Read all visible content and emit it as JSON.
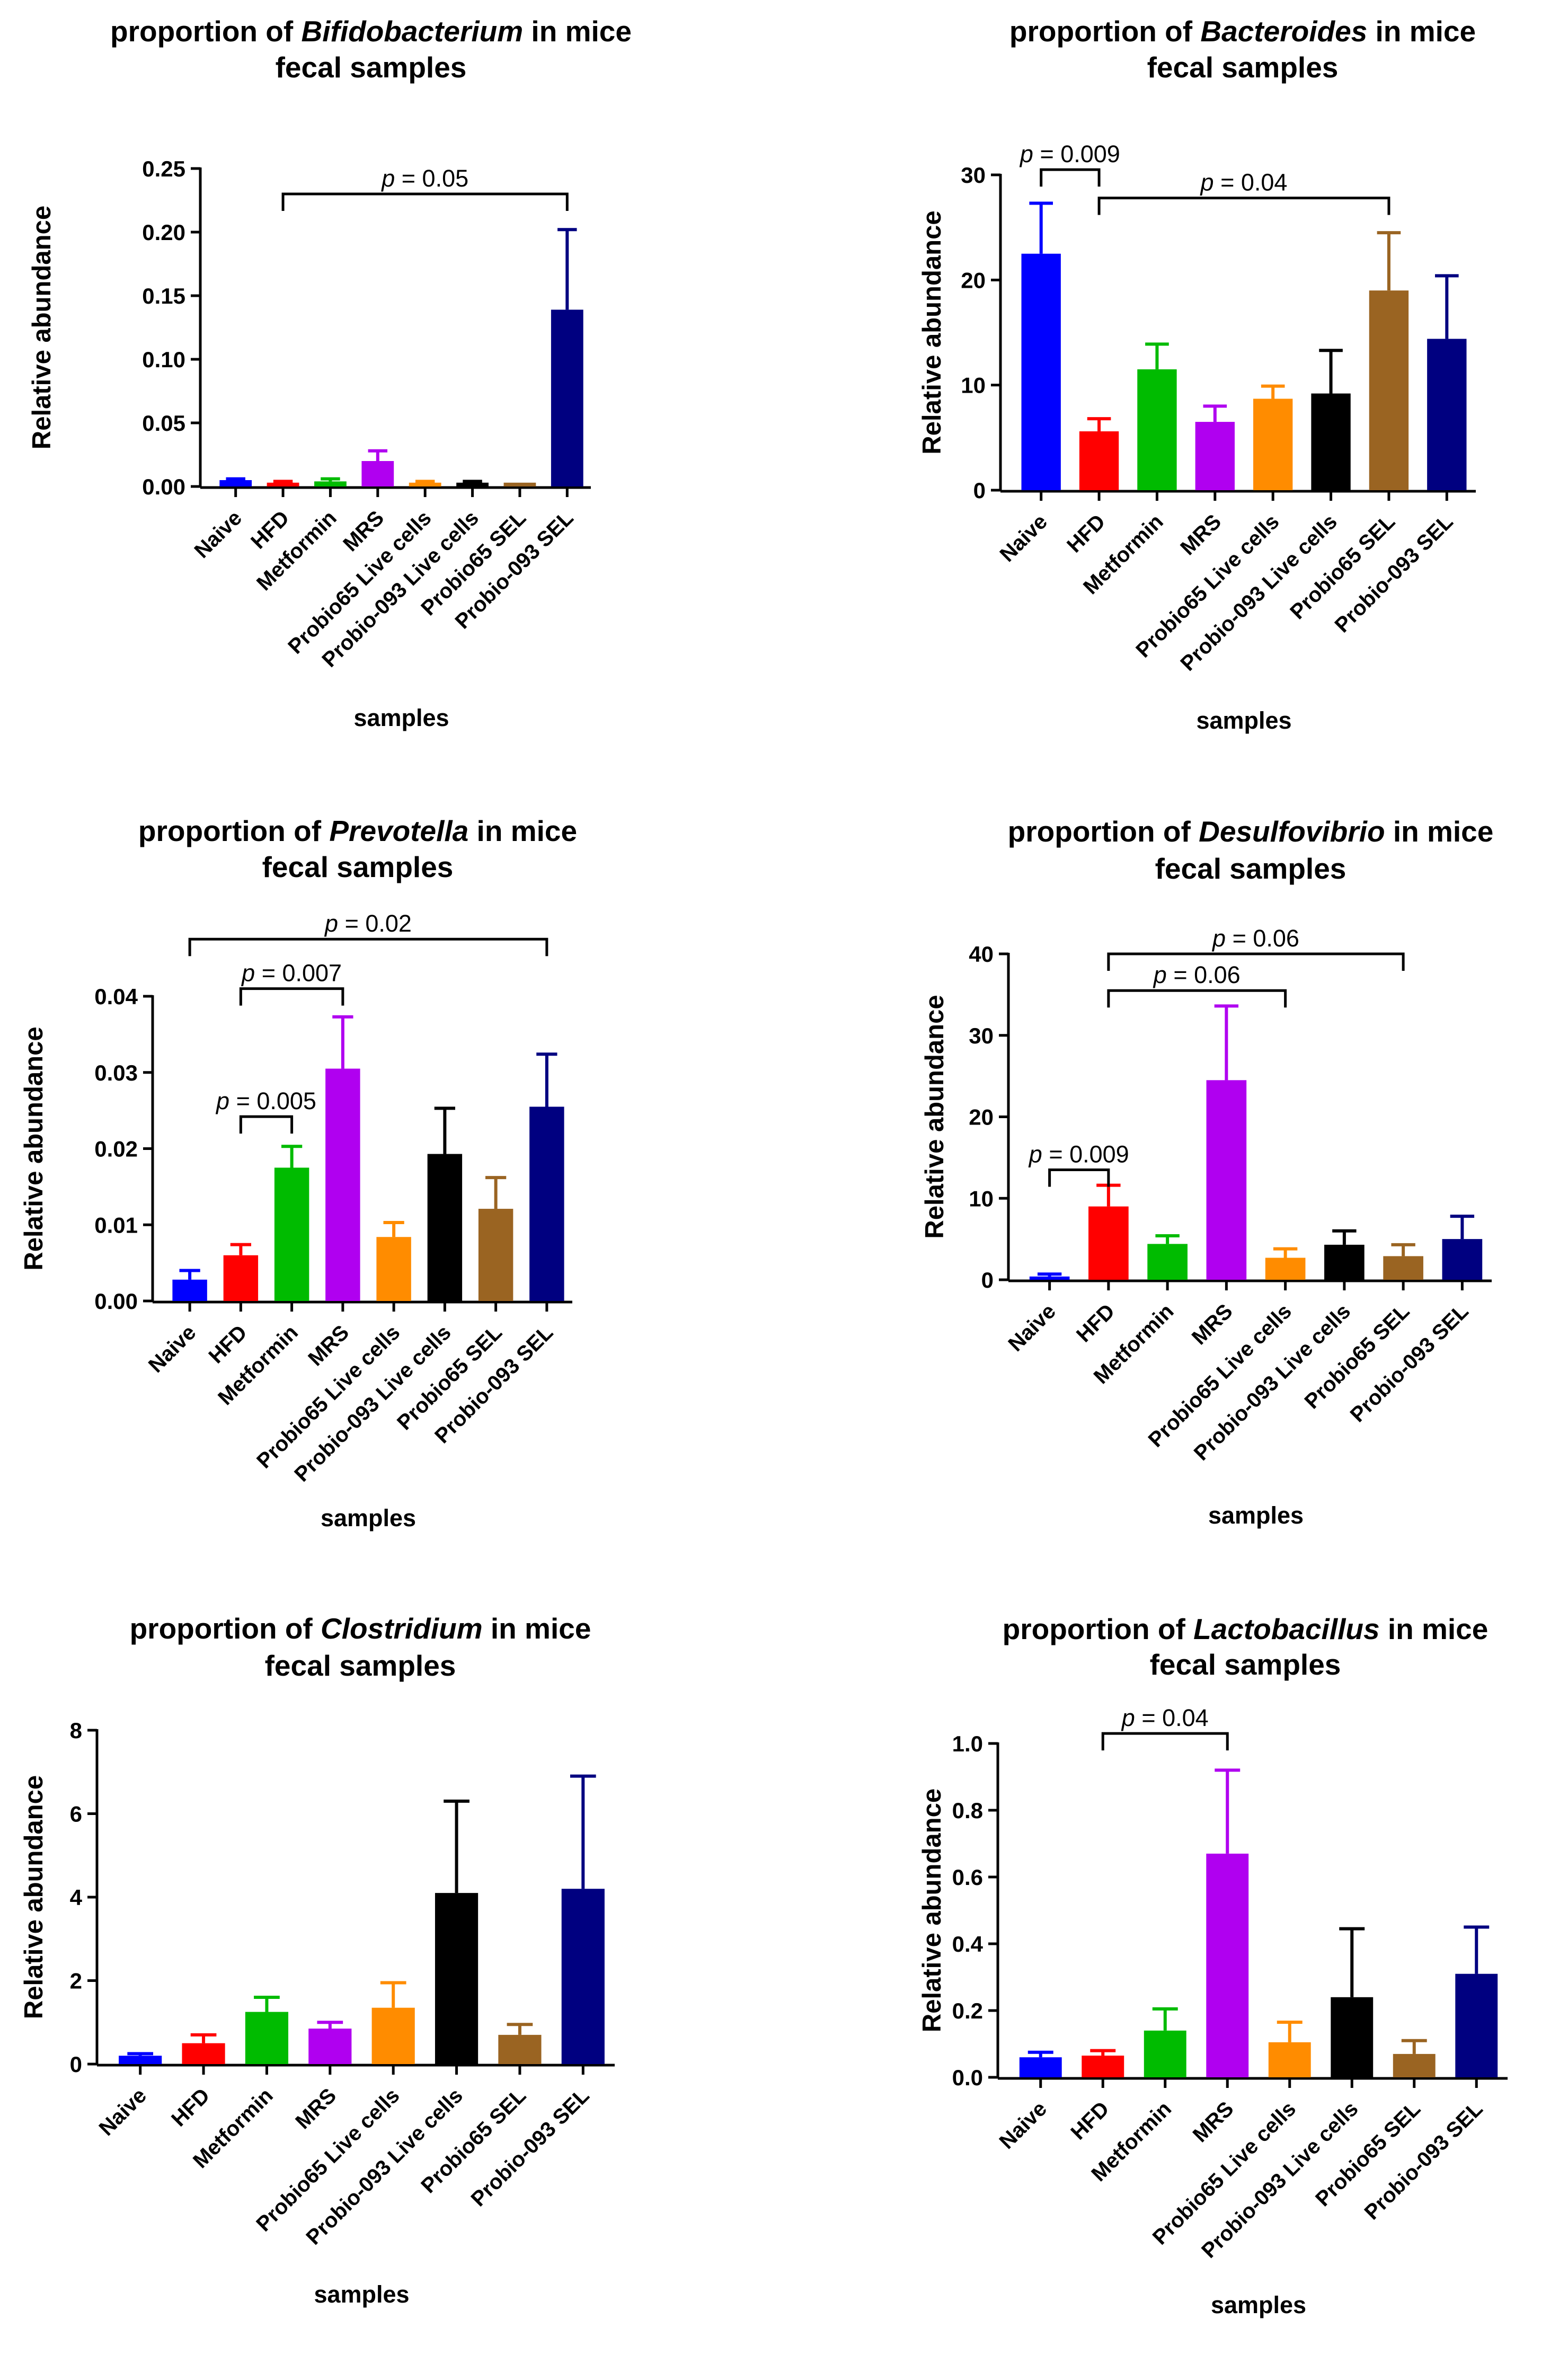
{
  "chart_data": [
    {
      "type": "bar",
      "title": {
        "prefix": "proportion of",
        "genus": "Bifidobacterium",
        "suffix": "in mice",
        "line2": "fecal samples"
      },
      "xlabel": "samples",
      "ylabel": "Relative abundance",
      "ylim": [
        0,
        0.25
      ],
      "yticks": [
        "0.00",
        "0.05",
        "0.10",
        "0.15",
        "0.20",
        "0.25"
      ],
      "categories": [
        "Naive",
        "HFD",
        "Metformin",
        "MRS",
        "Probio65 Live cells",
        "Probio-093 Live cells",
        "Probio65 SEL",
        "Probio-093 SEL"
      ],
      "values": [
        0.005,
        0.003,
        0.004,
        0.02,
        0.003,
        0.003,
        0.003,
        0.139
      ],
      "errors": [
        0.001,
        0.001,
        0.002,
        0.008,
        0.001,
        0.001,
        0.0,
        0.063
      ],
      "annotations": [
        {
          "from": 1,
          "to": 7,
          "text": "p = 0.05",
          "level": 0.23
        }
      ]
    },
    {
      "type": "bar",
      "title": {
        "prefix": "proportion of",
        "genus": "Bacteroides",
        "suffix": "in mice",
        "line2": "fecal samples"
      },
      "xlabel": "samples",
      "ylabel": "Relative abundance",
      "ylim": [
        0,
        30
      ],
      "yticks": [
        "0",
        "10",
        "20",
        "30"
      ],
      "categories": [
        "Naive",
        "HFD",
        "Metformin",
        "MRS",
        "Probio65 Live cells",
        "Probio-093 Live cells",
        "Probio65 SEL",
        "Probio-093 SEL"
      ],
      "values": [
        22.5,
        5.6,
        11.5,
        6.5,
        8.7,
        9.2,
        19.0,
        14.4
      ],
      "errors": [
        4.8,
        1.2,
        2.4,
        1.5,
        1.2,
        4.1,
        5.5,
        6.0
      ],
      "annotations": [
        {
          "from": 0,
          "to": 1,
          "text": "p = 0.009",
          "level": 30.5
        },
        {
          "from": 1,
          "to": 6,
          "text": "p = 0.04",
          "level": 27.8
        }
      ]
    },
    {
      "type": "bar",
      "title": {
        "prefix": "proportion of",
        "genus": "Prevotella",
        "suffix": "in mice",
        "line2": "fecal samples"
      },
      "xlabel": "samples",
      "ylabel": "Relative abundance",
      "ylim": [
        0,
        0.04
      ],
      "yticks": [
        "0.00",
        "0.01",
        "0.02",
        "0.03",
        "0.04"
      ],
      "categories": [
        "Naive",
        "HFD",
        "Metformin",
        "MRS",
        "Probio65 Live cells",
        "Probio-093 Live cells",
        "Probio65 SEL",
        "Probio-093 SEL"
      ],
      "values": [
        0.0028,
        0.006,
        0.0175,
        0.0305,
        0.0084,
        0.0193,
        0.0121,
        0.0255
      ],
      "errors": [
        0.0012,
        0.0014,
        0.0028,
        0.0068,
        0.0019,
        0.006,
        0.0041,
        0.0069
      ],
      "annotations": [
        {
          "from": 1,
          "to": 2,
          "text": "p = 0.005",
          "level": 0.0242
        },
        {
          "from": 1,
          "to": 3,
          "text": "p = 0.007",
          "level": 0.041
        },
        {
          "from": 0,
          "to": 7,
          "text": "p = 0.02",
          "level": 0.0475
        }
      ]
    },
    {
      "type": "bar",
      "title": {
        "prefix": "proportion of",
        "genus": "Desulfovibrio",
        "suffix": "in mice",
        "line2": "fecal samples"
      },
      "xlabel": "samples",
      "ylabel": "Relative abundance",
      "ylim": [
        0,
        40
      ],
      "yticks": [
        "0",
        "10",
        "20",
        "30",
        "40"
      ],
      "categories": [
        "Naive",
        "HFD",
        "Metformin",
        "MRS",
        "Probio65 Live cells",
        "Probio-093 Live cells",
        "Probio65 SEL",
        "Probio-093 SEL"
      ],
      "values": [
        0.4,
        9.0,
        4.4,
        24.5,
        2.7,
        4.3,
        2.9,
        5.0
      ],
      "errors": [
        0.3,
        2.6,
        1.0,
        9.1,
        1.1,
        1.7,
        1.4,
        2.8
      ],
      "annotations": [
        {
          "from": 0,
          "to": 1,
          "text": "p = 0.009",
          "level": 13.5
        },
        {
          "from": 1,
          "to": 4,
          "text": "p = 0.06",
          "level": 35.5
        },
        {
          "from": 1,
          "to": 6,
          "text": "p = 0.06",
          "level": 40.0
        }
      ]
    },
    {
      "type": "bar",
      "title": {
        "prefix": "proportion of",
        "genus": "Clostridium",
        "suffix": "in mice",
        "line2": "fecal samples"
      },
      "xlabel": "samples",
      "ylabel": "Relative abundance",
      "ylim": [
        0,
        8
      ],
      "yticks": [
        "0",
        "2",
        "4",
        "6",
        "8"
      ],
      "categories": [
        "Naive",
        "HFD",
        "Metformin",
        "MRS",
        "Probio65 Live cells",
        "Probio-093 Live cells",
        "Probio65 SEL",
        "Probio-093 SEL"
      ],
      "values": [
        0.2,
        0.5,
        1.25,
        0.85,
        1.35,
        4.1,
        0.7,
        4.2
      ],
      "errors": [
        0.05,
        0.2,
        0.35,
        0.15,
        0.6,
        2.2,
        0.25,
        2.7
      ],
      "annotations": []
    },
    {
      "type": "bar",
      "title": {
        "prefix": "proportion of",
        "genus": "Lactobacillus",
        "suffix": "in mice",
        "line2": "fecal samples"
      },
      "xlabel": "samples",
      "ylabel": "Relative abundance",
      "ylim": [
        0,
        1.0
      ],
      "yticks": [
        "0.0",
        "0.2",
        "0.4",
        "0.6",
        "0.8",
        "1.0"
      ],
      "categories": [
        "Naive",
        "HFD",
        "Metformin",
        "MRS",
        "Probio65 Live cells",
        "Probio-093 Live cells",
        "Probio65 SEL",
        "Probio-093 SEL"
      ],
      "values": [
        0.06,
        0.065,
        0.14,
        0.67,
        0.105,
        0.24,
        0.07,
        0.31
      ],
      "errors": [
        0.015,
        0.015,
        0.065,
        0.25,
        0.06,
        0.205,
        0.04,
        0.14
      ],
      "annotations": [
        {
          "from": 1,
          "to": 3,
          "text": "p = 0.04",
          "level": 1.03
        }
      ]
    }
  ],
  "colors": [
    "#0000ff",
    "#ff0000",
    "#00bb00",
    "#b000f0",
    "#ff8c00",
    "#000000",
    "#9a6422",
    "#000080"
  ]
}
